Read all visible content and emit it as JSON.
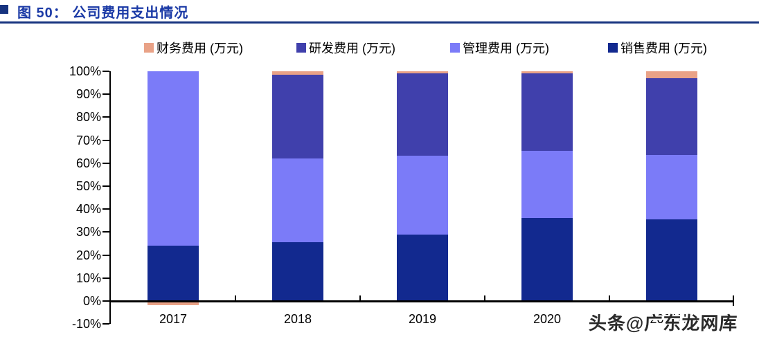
{
  "header": {
    "title": "图 50：  公司费用支出情况"
  },
  "legend": [
    {
      "label": "财务费用 (万元)",
      "color": "#E9A287"
    },
    {
      "label": "研发费用 (万元)",
      "color": "#4040AC"
    },
    {
      "label": "管理费用 (万元)",
      "color": "#7B7BF8"
    },
    {
      "label": "销售费用 (万元)",
      "color": "#12298F"
    }
  ],
  "watermark": "头条@广东龙网库",
  "chart_data": {
    "type": "bar",
    "stacked": true,
    "percent_stacked": true,
    "title": "公司费用支出情况",
    "xlabel": "",
    "ylabel": "",
    "categories": [
      "2017",
      "2018",
      "2019",
      "2020",
      "2021H1"
    ],
    "series": [
      {
        "name": "销售费用(万元)",
        "color": "#12298F",
        "values": [
          24,
          25.5,
          29,
          36,
          35.5
        ]
      },
      {
        "name": "管理费用(万元)",
        "color": "#7B7BF8",
        "values": [
          76,
          36.5,
          34.2,
          29.5,
          28
        ]
      },
      {
        "name": "研发费用(万元)",
        "color": "#4040AC",
        "values": [
          0,
          36.5,
          35.8,
          33.5,
          33.5
        ]
      },
      {
        "name": "财务费用(万元)",
        "color": "#E9A287",
        "values": [
          -1,
          1.5,
          1,
          1,
          3
        ]
      }
    ],
    "ylim": [
      -10,
      100
    ],
    "yticks": [
      "100%",
      "90%",
      "80%",
      "70%",
      "60%",
      "50%",
      "40%",
      "30%",
      "20%",
      "10%",
      "0%",
      "-10%"
    ],
    "grid": false,
    "legend_position": "top"
  }
}
